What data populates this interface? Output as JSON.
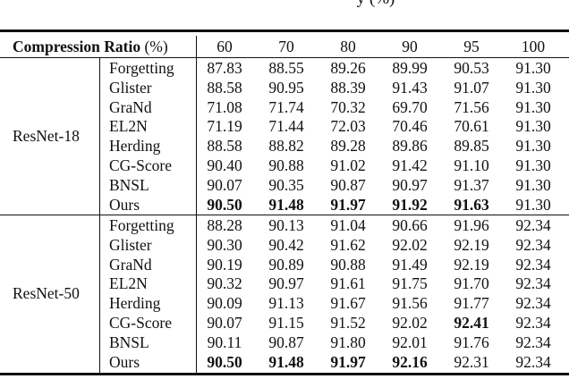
{
  "caption_fragment": "y (%)",
  "header": {
    "label_bold": "Compression Ratio",
    "label_unit": " (%)",
    "columns": [
      "60",
      "70",
      "80",
      "90",
      "95",
      "100"
    ]
  },
  "groups": [
    {
      "model": "ResNet-18",
      "rows": [
        {
          "method": "Forgetting",
          "values": [
            "87.83",
            "88.55",
            "89.26",
            "89.99",
            "90.53",
            "91.30"
          ],
          "bold": []
        },
        {
          "method": "Glister",
          "values": [
            "88.58",
            "90.95",
            "88.39",
            "91.43",
            "91.07",
            "91.30"
          ],
          "bold": []
        },
        {
          "method": "GraNd",
          "values": [
            "71.08",
            "71.74",
            "70.32",
            "69.70",
            "71.56",
            "91.30"
          ],
          "bold": []
        },
        {
          "method": "EL2N",
          "values": [
            "71.19",
            "71.44",
            "72.03",
            "70.46",
            "70.61",
            "91.30"
          ],
          "bold": []
        },
        {
          "method": "Herding",
          "values": [
            "88.58",
            "88.82",
            "89.28",
            "89.86",
            "89.85",
            "91.30"
          ],
          "bold": []
        },
        {
          "method": "CG-Score",
          "values": [
            "90.40",
            "90.88",
            "91.02",
            "91.42",
            "91.10",
            "91.30"
          ],
          "bold": []
        },
        {
          "method": "BNSL",
          "values": [
            "90.07",
            "90.35",
            "90.87",
            "90.97",
            "91.37",
            "91.30"
          ],
          "bold": []
        },
        {
          "method": "Ours",
          "values": [
            "90.50",
            "91.48",
            "91.97",
            "91.92",
            "91.63",
            "91.30"
          ],
          "bold": [
            0,
            1,
            2,
            3,
            4
          ]
        }
      ]
    },
    {
      "model": "ResNet-50",
      "rows": [
        {
          "method": "Forgetting",
          "values": [
            "88.28",
            "90.13",
            "91.04",
            "90.66",
            "91.96",
            "92.34"
          ],
          "bold": []
        },
        {
          "method": "Glister",
          "values": [
            "90.30",
            "90.42",
            "91.62",
            "92.02",
            "92.19",
            "92.34"
          ],
          "bold": []
        },
        {
          "method": "GraNd",
          "values": [
            "90.19",
            "90.89",
            "90.88",
            "91.49",
            "92.19",
            "92.34"
          ],
          "bold": []
        },
        {
          "method": "EL2N",
          "values": [
            "90.32",
            "90.97",
            "91.61",
            "91.75",
            "91.70",
            "92.34"
          ],
          "bold": []
        },
        {
          "method": "Herding",
          "values": [
            "90.09",
            "91.13",
            "91.67",
            "91.56",
            "91.77",
            "92.34"
          ],
          "bold": []
        },
        {
          "method": "CG-Score",
          "values": [
            "90.07",
            "91.15",
            "91.52",
            "92.02",
            "92.41",
            "92.34"
          ],
          "bold": [
            4
          ]
        },
        {
          "method": "BNSL",
          "values": [
            "90.11",
            "90.87",
            "91.80",
            "92.01",
            "91.76",
            "92.34"
          ],
          "bold": []
        },
        {
          "method": "Ours",
          "values": [
            "90.50",
            "91.48",
            "91.97",
            "92.16",
            "92.31",
            "92.34"
          ],
          "bold": [
            0,
            1,
            2,
            3
          ]
        }
      ]
    }
  ]
}
